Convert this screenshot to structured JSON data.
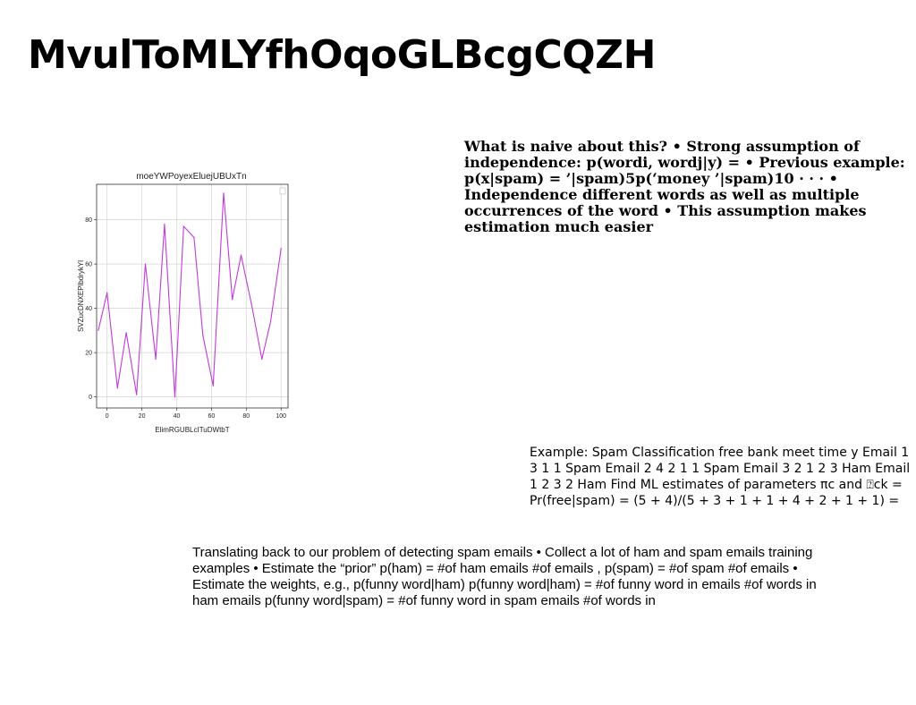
{
  "slide": {
    "title": "MvulToMLYfhOqoGLBcgCQZH"
  },
  "text_blocks": {
    "naive_assumption": "What is naive about this? • Strong assumption of independence: p(wordi, wordj|y) = • Previous example: p(x|spam) = ’|spam)5p(‘money ’|spam)10 · · · • Independence different words as well as multiple occurrences of the word • This assumption makes estimation much easier",
    "spam_example": "Example: Spam Classification free bank meet time y Email 1 3 1 1 Spam Email 2 4 2 1 1 Spam Email 3 2 1 2 3 Ham Email 1 2 3 2 Ham Find ML estimates of parameters πc and ⍰ck = Pr(free|spam) = (5 + 4)/(5 + 3 + 1 + 1 + 4 + 2 + 1 + 1) =",
    "translating_back": "Translating back to our problem of detecting spam emails • Collect a lot of ham and spam emails training examples • Estimate the “prior” p(ham) = #of ham emails #of emails , p(spam) = #of spam #of emails • Estimate the weights, e.g., p(funny word|ham) p(funny word|ham) = #of funny word in emails #of words in ham emails p(funny word|spam) = #of funny word in spam emails #of words in"
  },
  "chart_data": {
    "type": "line",
    "title": "moeYWPoyexEluejUBUxTn",
    "xlabel": "ElimRGUBLcITuDWtbT",
    "ylabel": "SVZucDNXEPlbdrykYl",
    "xlim": [
      -6,
      104
    ],
    "ylim": [
      -5,
      96
    ],
    "xticks": [
      0,
      20,
      40,
      60,
      80,
      100
    ],
    "yticks": [
      0,
      20,
      40,
      60,
      80
    ],
    "grid": true,
    "legend": "top-right",
    "color": "#c03ad6",
    "series": [
      {
        "x": [
          -5,
          0,
          6,
          11,
          17,
          22,
          28,
          33,
          39,
          44,
          50,
          55,
          61,
          67,
          72,
          77,
          83,
          89,
          94,
          100
        ],
        "y": [
          30,
          47,
          4,
          29,
          1,
          60,
          17,
          78,
          0,
          77,
          72,
          28,
          5,
          92,
          44,
          64,
          42,
          17,
          34,
          67
        ]
      }
    ]
  }
}
